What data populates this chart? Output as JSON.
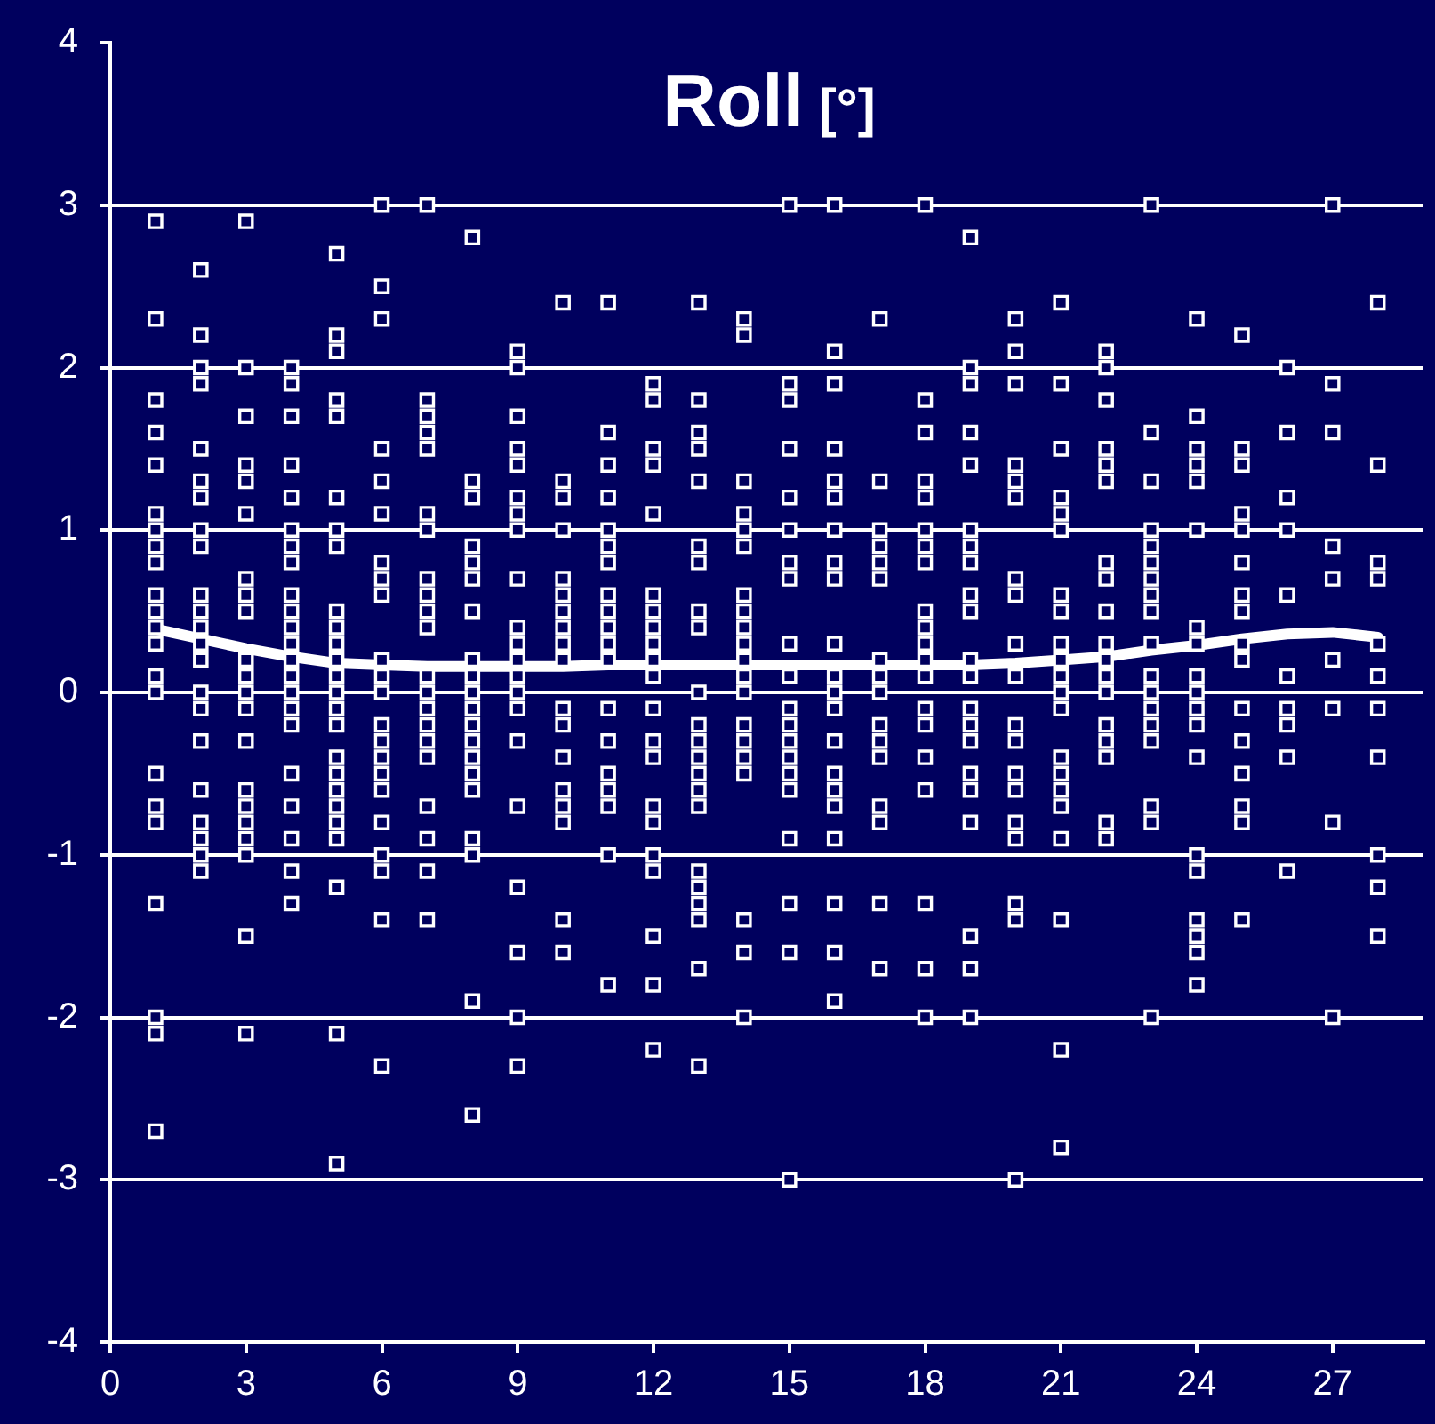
{
  "chart_data": {
    "type": "scatter",
    "title": "Roll [°]",
    "xlim": [
      0,
      29
    ],
    "xticks": [
      0,
      3,
      6,
      9,
      12,
      15,
      18,
      21,
      24,
      27
    ],
    "ylim": [
      -4,
      4
    ],
    "yticks": [
      -4,
      -3,
      -2,
      -1,
      0,
      1,
      2,
      3,
      4
    ],
    "grid": "y",
    "marker": "square",
    "series": [
      {
        "color": "#ffffff",
        "x": [
          1,
          1,
          1,
          1,
          1,
          1,
          1,
          1,
          1,
          1,
          1,
          1,
          1,
          1,
          1,
          1,
          1,
          1,
          1,
          1,
          1,
          1,
          2,
          2,
          2,
          2,
          2,
          2,
          2,
          2,
          2,
          2,
          2,
          2,
          2,
          2,
          2,
          2,
          2,
          2,
          2,
          2,
          2,
          2,
          3,
          3,
          3,
          3,
          3,
          3,
          3,
          3,
          3,
          3,
          3,
          3,
          3,
          3,
          3,
          3,
          3,
          3,
          3,
          3,
          3,
          4,
          4,
          4,
          4,
          4,
          4,
          4,
          4,
          4,
          4,
          4,
          4,
          4,
          4,
          4,
          4,
          4,
          4,
          4,
          4,
          4,
          4,
          5,
          5,
          5,
          5,
          5,
          5,
          5,
          5,
          5,
          5,
          5,
          5,
          5,
          5,
          5,
          5,
          5,
          5,
          5,
          5,
          5,
          5,
          5,
          5,
          5,
          6,
          6,
          6,
          6,
          6,
          6,
          6,
          6,
          6,
          6,
          6,
          6,
          6,
          6,
          6,
          6,
          6,
          6,
          6,
          6,
          6,
          6,
          7,
          7,
          7,
          7,
          7,
          7,
          7,
          7,
          7,
          7,
          7,
          7,
          7,
          7,
          7,
          7,
          7,
          7,
          7,
          7,
          7,
          8,
          8,
          8,
          8,
          8,
          8,
          8,
          8,
          8,
          8,
          8,
          8,
          8,
          8,
          8,
          8,
          8,
          8,
          8,
          8,
          9,
          9,
          9,
          9,
          9,
          9,
          9,
          9,
          9,
          9,
          9,
          9,
          9,
          9,
          9,
          9,
          9,
          9,
          9,
          9,
          9,
          10,
          10,
          10,
          10,
          10,
          10,
          10,
          10,
          10,
          10,
          10,
          10,
          10,
          10,
          10,
          10,
          10,
          10,
          11,
          11,
          11,
          11,
          11,
          11,
          11,
          11,
          11,
          11,
          11,
          11,
          11,
          11,
          11,
          11,
          11,
          11,
          11,
          12,
          12,
          12,
          12,
          12,
          12,
          12,
          12,
          12,
          12,
          12,
          12,
          12,
          12,
          12,
          12,
          12,
          12,
          12,
          12,
          12,
          13,
          13,
          13,
          13,
          13,
          13,
          13,
          13,
          13,
          13,
          13,
          13,
          13,
          13,
          13,
          13,
          13,
          13,
          13,
          13,
          13,
          13,
          14,
          14,
          14,
          14,
          14,
          14,
          14,
          14,
          14,
          14,
          14,
          14,
          14,
          14,
          14,
          14,
          14,
          14,
          14,
          14,
          15,
          15,
          15,
          15,
          15,
          15,
          15,
          15,
          15,
          15,
          15,
          15,
          15,
          15,
          15,
          15,
          15,
          15,
          15,
          15,
          16,
          16,
          16,
          16,
          16,
          16,
          16,
          16,
          16,
          16,
          16,
          16,
          16,
          16,
          16,
          16,
          16,
          16,
          16,
          16,
          16,
          17,
          17,
          17,
          17,
          17,
          17,
          17,
          17,
          17,
          17,
          17,
          17,
          17,
          17,
          17,
          17,
          18,
          18,
          18,
          18,
          18,
          18,
          18,
          18,
          18,
          18,
          18,
          18,
          18,
          18,
          18,
          18,
          18,
          18,
          18,
          18,
          19,
          19,
          19,
          19,
          19,
          19,
          19,
          19,
          19,
          19,
          19,
          19,
          19,
          19,
          19,
          19,
          19,
          19,
          19,
          19,
          19,
          20,
          20,
          20,
          20,
          20,
          20,
          20,
          20,
          20,
          20,
          20,
          20,
          20,
          20,
          20,
          20,
          20,
          20,
          20,
          21,
          21,
          21,
          21,
          21,
          21,
          21,
          21,
          21,
          21,
          21,
          21,
          21,
          21,
          21,
          21,
          21,
          21,
          21,
          21,
          21,
          22,
          22,
          22,
          22,
          22,
          22,
          22,
          22,
          22,
          22,
          22,
          22,
          22,
          22,
          22,
          22,
          22,
          22,
          23,
          23,
          23,
          23,
          23,
          23,
          23,
          23,
          23,
          23,
          23,
          23,
          23,
          23,
          23,
          23,
          23,
          23,
          24,
          24,
          24,
          24,
          24,
          24,
          24,
          24,
          24,
          24,
          24,
          24,
          24,
          24,
          24,
          24,
          24,
          24,
          24,
          25,
          25,
          25,
          25,
          25,
          25,
          25,
          25,
          25,
          25,
          25,
          25,
          25,
          25,
          25,
          25,
          26,
          26,
          26,
          26,
          26,
          26,
          26,
          26,
          26,
          26,
          27,
          27,
          27,
          27,
          27,
          27,
          27,
          27,
          27,
          28,
          28,
          28,
          28,
          28,
          28,
          28,
          28,
          28,
          28,
          28
        ],
        "values": [
          2.9,
          2.3,
          1.8,
          1.6,
          1.4,
          1.1,
          1.0,
          0.9,
          0.8,
          0.6,
          0.5,
          0.4,
          0.3,
          0.1,
          0.0,
          -0.5,
          -0.7,
          -0.8,
          -1.3,
          -2.0,
          -2.1,
          -2.7,
          2.6,
          2.2,
          2.0,
          1.9,
          1.5,
          1.3,
          1.2,
          1.0,
          0.9,
          0.6,
          0.5,
          0.4,
          0.3,
          0.2,
          0.0,
          -0.1,
          -0.3,
          -0.6,
          -0.8,
          -0.9,
          -1.0,
          -1.1,
          2.9,
          2.0,
          1.7,
          1.4,
          1.3,
          1.1,
          0.7,
          0.6,
          0.5,
          0.2,
          0.1,
          0.0,
          -0.1,
          -0.3,
          -0.6,
          -0.7,
          -0.8,
          -0.9,
          -1.0,
          -1.5,
          -2.1,
          2.0,
          1.9,
          1.7,
          1.4,
          1.2,
          1.0,
          0.9,
          0.8,
          0.6,
          0.5,
          0.4,
          0.3,
          0.2,
          0.1,
          0.0,
          -0.1,
          -0.2,
          -0.5,
          -0.7,
          -0.9,
          -1.1,
          -1.3,
          2.7,
          2.2,
          2.1,
          1.8,
          1.7,
          1.2,
          1.0,
          0.9,
          0.5,
          0.4,
          0.3,
          0.2,
          0.1,
          0.0,
          -0.1,
          -0.2,
          -0.4,
          -0.5,
          -0.6,
          -0.7,
          -0.8,
          -0.9,
          -1.2,
          -2.1,
          -2.9,
          3.0,
          2.5,
          2.3,
          1.5,
          1.3,
          1.1,
          0.8,
          0.7,
          0.6,
          0.2,
          0.1,
          0.0,
          -0.2,
          -0.3,
          -0.4,
          -0.5,
          -0.6,
          -0.8,
          -1.0,
          -1.1,
          -1.4,
          -2.3,
          3.0,
          1.8,
          1.7,
          1.6,
          1.5,
          1.1,
          1.0,
          0.7,
          0.6,
          0.5,
          0.4,
          0.1,
          0.0,
          -0.1,
          -0.2,
          -0.3,
          -0.4,
          -0.7,
          -0.9,
          -1.1,
          -1.4,
          2.8,
          1.3,
          1.2,
          0.9,
          0.8,
          0.7,
          0.5,
          0.2,
          0.1,
          0.0,
          -0.1,
          -0.2,
          -0.3,
          -0.4,
          -0.5,
          -0.6,
          -0.9,
          -1.0,
          -1.9,
          -2.6,
          2.1,
          2.0,
          1.7,
          1.5,
          1.4,
          1.2,
          1.1,
          1.0,
          0.7,
          0.4,
          0.3,
          0.2,
          0.1,
          0.0,
          -0.1,
          -0.3,
          -0.7,
          -1.2,
          -1.6,
          -2.0,
          -2.3,
          2.4,
          1.3,
          1.2,
          1.0,
          0.7,
          0.6,
          0.5,
          0.4,
          0.3,
          0.2,
          -0.1,
          -0.2,
          -0.4,
          -0.6,
          -0.7,
          -0.8,
          -1.4,
          -1.6,
          2.4,
          1.6,
          1.4,
          1.2,
          1.0,
          0.9,
          0.8,
          0.6,
          0.5,
          0.4,
          0.3,
          0.2,
          -0.1,
          -0.3,
          -0.5,
          -0.6,
          -0.7,
          -1.0,
          -1.8,
          1.9,
          1.8,
          1.5,
          1.4,
          1.1,
          0.6,
          0.5,
          0.4,
          0.3,
          0.2,
          0.1,
          -0.1,
          -0.3,
          -0.4,
          -0.7,
          -0.8,
          -1.0,
          -1.1,
          -1.5,
          -1.8,
          -2.2,
          2.4,
          1.8,
          1.6,
          1.5,
          1.3,
          0.9,
          0.8,
          0.5,
          0.4,
          0.0,
          -0.2,
          -0.3,
          -0.4,
          -0.5,
          -0.6,
          -0.7,
          -1.1,
          -1.2,
          -1.3,
          -1.4,
          -1.7,
          -2.3,
          2.3,
          2.2,
          1.3,
          1.1,
          1.0,
          0.9,
          0.6,
          0.5,
          0.4,
          0.3,
          0.2,
          0.1,
          0.0,
          -0.2,
          -0.3,
          -0.4,
          -0.5,
          -1.4,
          -1.6,
          -2.0,
          3.0,
          1.9,
          1.8,
          1.5,
          1.2,
          1.0,
          0.8,
          0.7,
          0.3,
          0.1,
          -0.1,
          -0.2,
          -0.3,
          -0.4,
          -0.5,
          -0.6,
          -0.9,
          -1.3,
          -1.6,
          -3.0,
          3.0,
          2.1,
          1.9,
          1.5,
          1.3,
          1.2,
          1.0,
          0.8,
          0.7,
          0.3,
          0.1,
          0.0,
          -0.1,
          -0.3,
          -0.5,
          -0.6,
          -0.7,
          -0.9,
          -1.3,
          -1.6,
          -1.9,
          2.3,
          1.3,
          1.0,
          0.9,
          0.8,
          0.7,
          0.2,
          0.1,
          0.0,
          -0.2,
          -0.3,
          -0.4,
          -0.7,
          -0.8,
          -1.3,
          -1.7,
          3.0,
          1.8,
          1.6,
          1.3,
          1.2,
          1.0,
          0.9,
          0.8,
          0.5,
          0.4,
          0.3,
          0.2,
          0.1,
          -0.1,
          -0.2,
          -0.4,
          -0.6,
          -1.3,
          -1.7,
          -2.0,
          2.8,
          2.0,
          1.9,
          1.6,
          1.4,
          1.0,
          0.9,
          0.8,
          0.6,
          0.5,
          0.2,
          0.1,
          -0.1,
          -0.2,
          -0.3,
          -0.5,
          -0.6,
          -0.8,
          -1.5,
          -1.7,
          -2.0,
          2.3,
          2.1,
          1.9,
          1.4,
          1.3,
          1.2,
          0.7,
          0.6,
          0.3,
          0.1,
          -0.2,
          -0.3,
          -0.5,
          -0.6,
          -0.8,
          -0.9,
          -1.3,
          -1.4,
          -3.0,
          2.4,
          1.9,
          1.5,
          1.2,
          1.1,
          1.0,
          0.6,
          0.5,
          0.3,
          0.2,
          0.1,
          0.0,
          -0.1,
          -0.4,
          -0.5,
          -0.6,
          -0.7,
          -0.9,
          -1.4,
          -2.2,
          -2.8,
          2.1,
          2.0,
          1.8,
          1.5,
          1.4,
          1.3,
          0.8,
          0.7,
          0.5,
          0.3,
          0.2,
          0.1,
          0.0,
          -0.2,
          -0.3,
          -0.4,
          -0.8,
          -0.9,
          3.0,
          1.6,
          1.3,
          1.0,
          0.9,
          0.8,
          0.7,
          0.6,
          0.5,
          0.3,
          0.1,
          0.0,
          -0.1,
          -0.2,
          -0.3,
          -0.7,
          -0.8,
          -2.0,
          2.3,
          1.7,
          1.5,
          1.4,
          1.3,
          1.0,
          0.4,
          0.3,
          0.1,
          0.0,
          -0.1,
          -0.2,
          -0.4,
          -1.0,
          -1.1,
          -1.4,
          -1.5,
          -1.6,
          -1.8,
          2.2,
          1.5,
          1.4,
          1.1,
          1.0,
          0.8,
          0.6,
          0.5,
          0.3,
          0.2,
          -0.1,
          -0.3,
          -0.5,
          -0.7,
          -0.8,
          -1.4,
          2.0,
          1.6,
          1.2,
          1.0,
          0.6,
          0.1,
          -0.1,
          -0.2,
          -0.4,
          -1.1,
          3.0,
          1.9,
          1.6,
          0.9,
          0.7,
          0.2,
          -0.1,
          -0.8,
          -2.0,
          2.4,
          1.4,
          0.8,
          0.7,
          0.3,
          0.1,
          -0.1,
          -0.4,
          -1.0,
          -1.2,
          -1.5
        ]
      },
      {
        "type": "line",
        "color": "#ffffff",
        "marker": "none",
        "x": [
          1,
          2,
          3,
          4,
          5,
          6,
          7,
          8,
          9,
          10,
          11,
          12,
          13,
          14,
          15,
          16,
          17,
          18,
          19,
          20,
          21,
          22,
          23,
          24,
          25,
          26,
          27,
          28
        ],
        "values": [
          0.39,
          0.33,
          0.27,
          0.22,
          0.18,
          0.17,
          0.16,
          0.16,
          0.16,
          0.16,
          0.17,
          0.17,
          0.17,
          0.17,
          0.17,
          0.17,
          0.17,
          0.17,
          0.17,
          0.18,
          0.2,
          0.22,
          0.26,
          0.29,
          0.33,
          0.36,
          0.37,
          0.34
        ]
      }
    ]
  }
}
